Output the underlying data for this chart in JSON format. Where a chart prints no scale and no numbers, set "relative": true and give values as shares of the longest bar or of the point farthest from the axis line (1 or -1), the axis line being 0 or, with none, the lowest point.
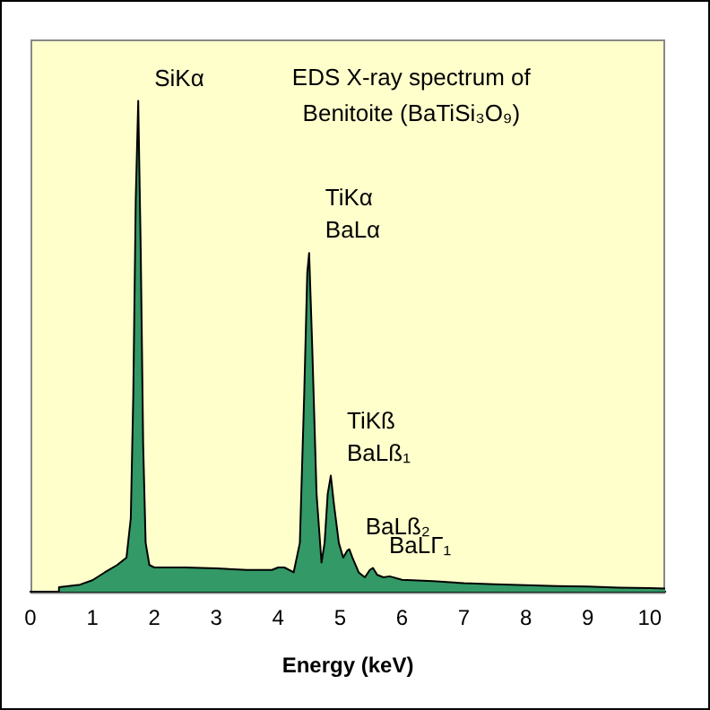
{
  "chart_data": {
    "type": "area",
    "title": "EDS X-ray spectrum of Benitoite (BaTiSi₃O₉)",
    "xlabel": "Energy (keV)",
    "relative": true,
    "xlim": [
      0,
      10.25
    ],
    "xticks": [
      0,
      1,
      2,
      3,
      4,
      5,
      6,
      7,
      8,
      9,
      10
    ],
    "grid": false,
    "legend": false,
    "series": [
      {
        "color": "#339966",
        "x": [
          0.44,
          0.46,
          0.8,
          1.0,
          1.2,
          1.4,
          1.55,
          1.62,
          1.66,
          1.7,
          1.74,
          1.78,
          1.82,
          1.86,
          1.92,
          2.0,
          2.5,
          3.0,
          3.5,
          3.9,
          4.0,
          4.1,
          4.25,
          4.35,
          4.42,
          4.47,
          4.5,
          4.55,
          4.62,
          4.7,
          4.75,
          4.8,
          4.85,
          4.9,
          4.98,
          5.05,
          5.12,
          5.15,
          5.2,
          5.3,
          5.4,
          5.48,
          5.53,
          5.6,
          5.7,
          5.8,
          6.0,
          6.5,
          7.0,
          7.5,
          8.0,
          8.5,
          9.0,
          9.5,
          10.0,
          10.25
        ],
        "values": [
          0,
          0.01,
          0.015,
          0.024,
          0.04,
          0.055,
          0.07,
          0.15,
          0.4,
          0.8,
          1.0,
          0.7,
          0.3,
          0.1,
          0.055,
          0.05,
          0.05,
          0.048,
          0.045,
          0.045,
          0.05,
          0.05,
          0.04,
          0.1,
          0.4,
          0.65,
          0.69,
          0.5,
          0.2,
          0.06,
          0.1,
          0.2,
          0.237,
          0.18,
          0.1,
          0.07,
          0.085,
          0.087,
          0.07,
          0.04,
          0.03,
          0.045,
          0.049,
          0.035,
          0.03,
          0.032,
          0.025,
          0.022,
          0.018,
          0.016,
          0.014,
          0.012,
          0.011,
          0.009,
          0.008,
          0.007
        ]
      }
    ],
    "annotations": [
      {
        "text": "SiKα",
        "x": 1.74,
        "y": 1.0
      },
      {
        "text": "TiKα",
        "x": 4.5,
        "y": 0.69
      },
      {
        "text": "BaLα",
        "x": 4.5,
        "y": 0.69
      },
      {
        "text": "TiKß",
        "x": 4.85,
        "y": 0.237
      },
      {
        "text": "BaLß₁",
        "x": 4.85,
        "y": 0.237
      },
      {
        "text": "BaLß₂",
        "x": 5.15,
        "y": 0.087
      },
      {
        "text": "BaLΓ₁",
        "x": 5.53,
        "y": 0.049
      }
    ]
  }
}
